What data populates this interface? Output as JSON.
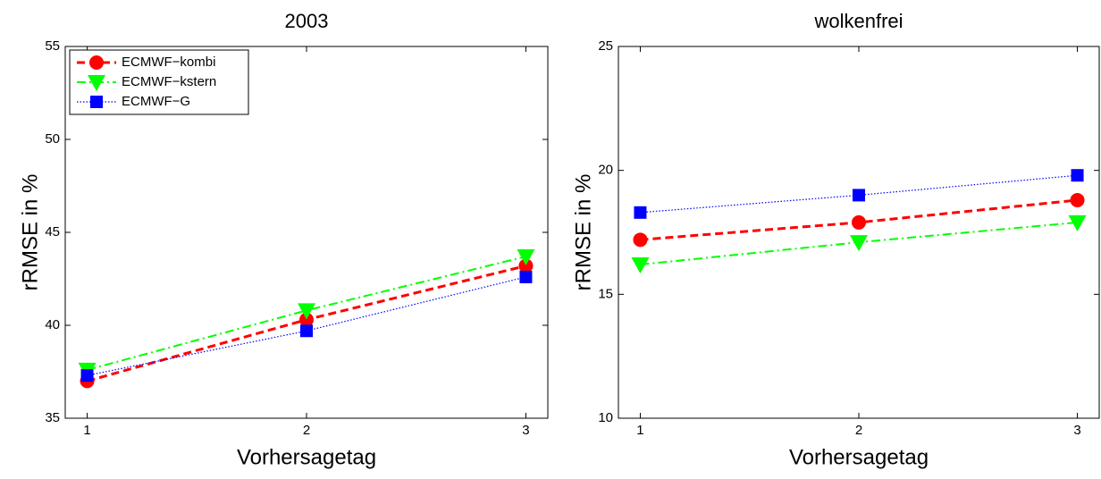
{
  "chart_data": [
    {
      "type": "line",
      "title": "2003",
      "xlabel": "Vorhersagetag",
      "ylabel": "rRMSE in %",
      "x": [
        1,
        2,
        3
      ],
      "xlim": [
        0.9,
        3.1
      ],
      "xticks": [
        1,
        2,
        3
      ],
      "ylim": [
        35,
        55
      ],
      "yticks": [
        35,
        40,
        45,
        50,
        55
      ],
      "legend": "upper left",
      "series": [
        {
          "name": "ECMWF−kombi",
          "color": "#ff0000",
          "marker": "circle",
          "linestyle": "dashed",
          "values": [
            37.0,
            40.3,
            43.2
          ]
        },
        {
          "name": "ECMWF−kstern",
          "color": "#00ff00",
          "marker": "triangle-down",
          "linestyle": "dashdot",
          "values": [
            37.6,
            40.8,
            43.7
          ]
        },
        {
          "name": "ECMWF−G",
          "color": "#0000ff",
          "marker": "square",
          "linestyle": "dotted",
          "values": [
            37.3,
            39.7,
            42.6
          ]
        }
      ]
    },
    {
      "type": "line",
      "title": "wolkenfrei",
      "xlabel": "Vorhersagetag",
      "ylabel": "rRMSE in %",
      "x": [
        1,
        2,
        3
      ],
      "xlim": [
        0.9,
        3.1
      ],
      "xticks": [
        1,
        2,
        3
      ],
      "ylim": [
        10,
        25
      ],
      "yticks": [
        10,
        15,
        20,
        25
      ],
      "series": [
        {
          "color": "#ff0000",
          "marker": "circle",
          "linestyle": "dashed",
          "values": [
            17.2,
            17.9,
            18.8
          ]
        },
        {
          "color": "#00ff00",
          "marker": "triangle-down",
          "linestyle": "dashdot",
          "values": [
            16.2,
            17.1,
            17.9
          ]
        },
        {
          "color": "#0000ff",
          "marker": "square",
          "linestyle": "dotted",
          "values": [
            18.3,
            19.0,
            19.8
          ]
        }
      ]
    }
  ]
}
